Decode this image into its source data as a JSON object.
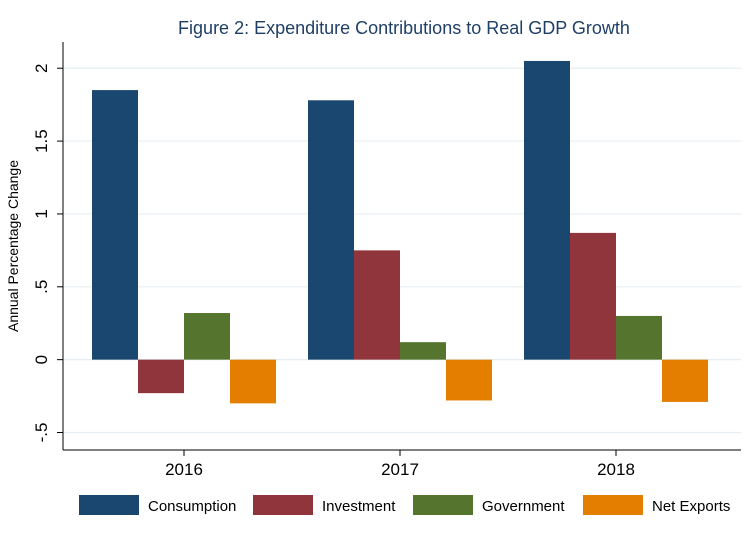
{
  "chart_data": {
    "type": "bar",
    "title": "Figure 2: Expenditure Contributions to Real GDP Growth",
    "xlabel": "",
    "ylabel": "Annual Percentage Change",
    "categories": [
      "2016",
      "2017",
      "2018"
    ],
    "series": [
      {
        "name": "Consumption",
        "color": "#1a476f",
        "values": [
          1.85,
          1.78,
          2.05
        ]
      },
      {
        "name": "Investment",
        "color": "#90353b",
        "values": [
          -0.23,
          0.75,
          0.87
        ]
      },
      {
        "name": "Government",
        "color": "#55752f",
        "values": [
          0.32,
          0.12,
          0.3
        ]
      },
      {
        "name": "Net Exports",
        "color": "#e37e00",
        "values": [
          -0.3,
          -0.28,
          -0.29
        ]
      }
    ],
    "ylim": [
      -0.62,
      2.18
    ],
    "yticks": [
      -0.5,
      0,
      0.5,
      1,
      1.5,
      2
    ],
    "ytick_labels": [
      "-.5",
      "0",
      ".5",
      "1",
      "1.5",
      "2"
    ],
    "grid": true,
    "legend_position": "bottom"
  }
}
